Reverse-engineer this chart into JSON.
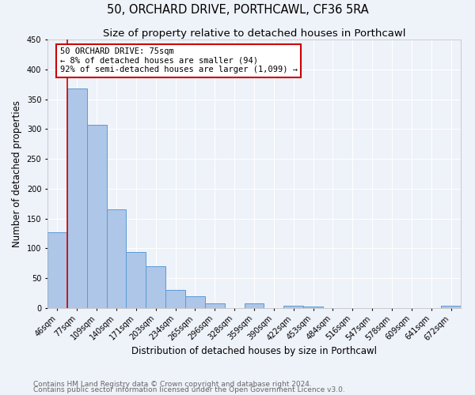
{
  "title": "50, ORCHARD DRIVE, PORTHCAWL, CF36 5RA",
  "subtitle": "Size of property relative to detached houses in Porthcawl",
  "xlabel": "Distribution of detached houses by size in Porthcawl",
  "ylabel": "Number of detached properties",
  "bin_labels": [
    "46sqm",
    "77sqm",
    "109sqm",
    "140sqm",
    "171sqm",
    "203sqm",
    "234sqm",
    "265sqm",
    "296sqm",
    "328sqm",
    "359sqm",
    "390sqm",
    "422sqm",
    "453sqm",
    "484sqm",
    "516sqm",
    "547sqm",
    "578sqm",
    "609sqm",
    "641sqm",
    "672sqm"
  ],
  "bar_heights": [
    127,
    368,
    307,
    165,
    94,
    70,
    30,
    20,
    8,
    0,
    8,
    0,
    4,
    2,
    0,
    0,
    0,
    0,
    0,
    0,
    4
  ],
  "bar_color": "#aec6e8",
  "bar_edge_color": "#5b9bd5",
  "marker_line_color": "#cc0000",
  "marker_label": "50 ORCHARD DRIVE: 75sqm",
  "annotation_lines": [
    "← 8% of detached houses are smaller (94)",
    "92% of semi-detached houses are larger (1,099) →"
  ],
  "annotation_box_color": "#cc0000",
  "ylim": [
    0,
    450
  ],
  "yticks": [
    0,
    50,
    100,
    150,
    200,
    250,
    300,
    350,
    400,
    450
  ],
  "footnote1": "Contains HM Land Registry data © Crown copyright and database right 2024.",
  "footnote2": "Contains public sector information licensed under the Open Government Licence v3.0.",
  "background_color": "#eef2f9",
  "grid_color": "#ffffff",
  "title_fontsize": 10.5,
  "subtitle_fontsize": 9.5,
  "axis_label_fontsize": 8.5,
  "tick_fontsize": 7,
  "annotation_fontsize": 7.5,
  "footnote_fontsize": 6.5
}
